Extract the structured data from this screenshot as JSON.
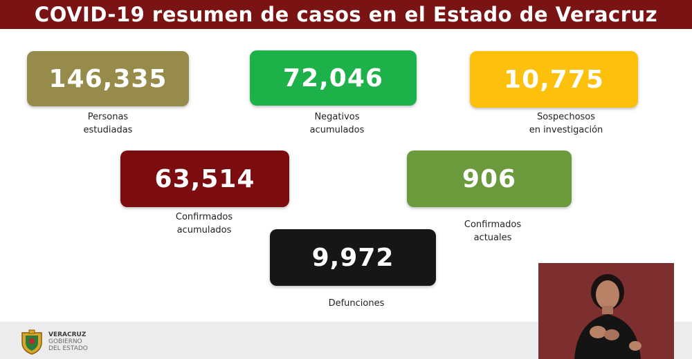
{
  "header": {
    "title": "COVID-19 resumen de casos en el Estado de Veracruz"
  },
  "stats": {
    "estudiadas": {
      "value": "146,335",
      "label_line1": "Personas",
      "label_line2": "estudiadas",
      "color": "#978b4b"
    },
    "negativos": {
      "value": "72,046",
      "label_line1": "Negativos",
      "label_line2": "acumulados",
      "color": "#1db14a"
    },
    "sospechosos": {
      "value": "10,775",
      "label_line1": "Sospechosos",
      "label_line2": "en investigación",
      "color": "#fcc00d"
    },
    "confirmados": {
      "value": "63,514",
      "label_line1": "Confirmados",
      "label_line2": "acumulados",
      "color": "#7b0c10"
    },
    "actuales": {
      "value": "906",
      "label_line1": "Confirmados",
      "label_line2": "actuales",
      "color": "#6b9a3d"
    },
    "defunciones": {
      "value": "9,972",
      "label_line1": "Defunciones",
      "color": "#161616"
    }
  },
  "footer": {
    "logo_line1": "VERACRUZ",
    "logo_line2": "GOBIERNO",
    "logo_line3": "DEL ESTADO"
  },
  "interpreter": {
    "icon": "sign-language-interpreter"
  }
}
